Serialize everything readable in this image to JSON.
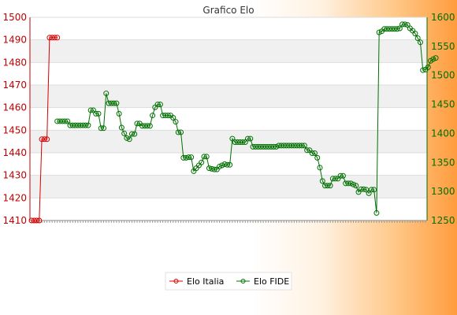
{
  "chart_data": {
    "type": "line",
    "title": "Grafico Elo",
    "left_axis": {
      "ticks": [
        1410,
        1420,
        1430,
        1440,
        1450,
        1460,
        1470,
        1480,
        1490,
        1500
      ],
      "ylim": [
        1410,
        1500
      ],
      "color": "#c00000"
    },
    "right_axis": {
      "ticks": [
        1250,
        1300,
        1350,
        1400,
        1450,
        1500,
        1550,
        1600
      ],
      "ylim": [
        1250,
        1600
      ],
      "color": "#007000"
    },
    "grid": true,
    "legend_position": "bottom",
    "series": [
      {
        "name": "Elo Italia",
        "axis": "left",
        "color": "#d40000",
        "values": [
          1410,
          1410,
          1410,
          1410,
          1446,
          1446,
          1446,
          1491,
          1491,
          1491,
          1491
        ]
      },
      {
        "name": "Elo FIDE",
        "axis": "right",
        "color": "#007000",
        "start_index": 10,
        "values": [
          1421,
          1421,
          1421,
          1421,
          1421,
          1414,
          1414,
          1414,
          1414,
          1414,
          1414,
          1414,
          1414,
          1440,
          1440,
          1434,
          1434,
          1409,
          1409,
          1469,
          1452,
          1452,
          1452,
          1452,
          1434,
          1410,
          1400,
          1392,
          1390,
          1399,
          1399,
          1417,
          1417,
          1413,
          1413,
          1413,
          1413,
          1431,
          1445,
          1450,
          1450,
          1431,
          1431,
          1431,
          1431,
          1427,
          1420,
          1402,
          1402,
          1358,
          1358,
          1359,
          1359,
          1335,
          1340,
          1345,
          1350,
          1360,
          1360,
          1340,
          1339,
          1338,
          1338,
          1343,
          1345,
          1347,
          1346,
          1346,
          1391,
          1385,
          1385,
          1385,
          1385,
          1385,
          1391,
          1391,
          1377,
          1377,
          1377,
          1377,
          1377,
          1377,
          1377,
          1377,
          1377,
          1377,
          1379,
          1379,
          1379,
          1379,
          1379,
          1379,
          1379,
          1379,
          1379,
          1379,
          1379,
          1371,
          1371,
          1366,
          1366,
          1358,
          1341,
          1318,
          1310,
          1310,
          1310,
          1322,
          1322,
          1322,
          1327,
          1327,
          1314,
          1314,
          1314,
          1312,
          1310,
          1299,
          1304,
          1304,
          1303,
          1297,
          1303,
          1303,
          1263,
          1574,
          1576,
          1580,
          1580,
          1580,
          1580,
          1580,
          1580,
          1581,
          1588,
          1588,
          1587,
          1581,
          1577,
          1572,
          1564,
          1557,
          1509,
          1510,
          1514,
          1525,
          1528,
          1530
        ]
      }
    ],
    "x_tick_count": 154
  }
}
